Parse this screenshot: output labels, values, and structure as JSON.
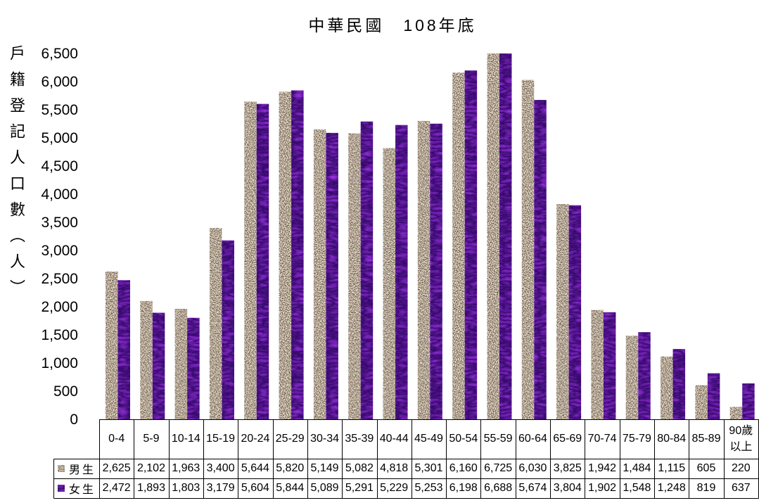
{
  "chart_data": {
    "type": "bar",
    "title": "中華民國　108年底",
    "xlabel": "",
    "ylabel": "戶籍登記人口數（人）",
    "categories": [
      "0-4",
      "5-9",
      "10-14",
      "15-19",
      "20-24",
      "25-29",
      "30-34",
      "35-39",
      "40-44",
      "45-49",
      "50-54",
      "55-59",
      "60-64",
      "65-69",
      "70-74",
      "75-79",
      "80-84",
      "85-89",
      "90歲以上"
    ],
    "series": [
      {
        "name": "男生",
        "color": "#a99c8e",
        "values": [
          2625,
          2102,
          1963,
          3400,
          5644,
          5820,
          5149,
          5082,
          4818,
          5301,
          6160,
          6725,
          6030,
          3825,
          1942,
          1484,
          1115,
          605,
          220
        ]
      },
      {
        "name": "女生",
        "color": "#4b137e",
        "values": [
          2472,
          1893,
          1803,
          3179,
          5604,
          5844,
          5089,
          5291,
          5229,
          5253,
          6198,
          6688,
          5674,
          3804,
          1902,
          1548,
          1248,
          819,
          637
        ]
      }
    ],
    "ylim": [
      0,
      6500
    ],
    "yticks": [
      0,
      500,
      1000,
      1500,
      2000,
      2500,
      3000,
      3500,
      4000,
      4500,
      5000,
      5500,
      6000,
      6500
    ],
    "grid": false,
    "legend": "bottom",
    "data_table": true
  }
}
